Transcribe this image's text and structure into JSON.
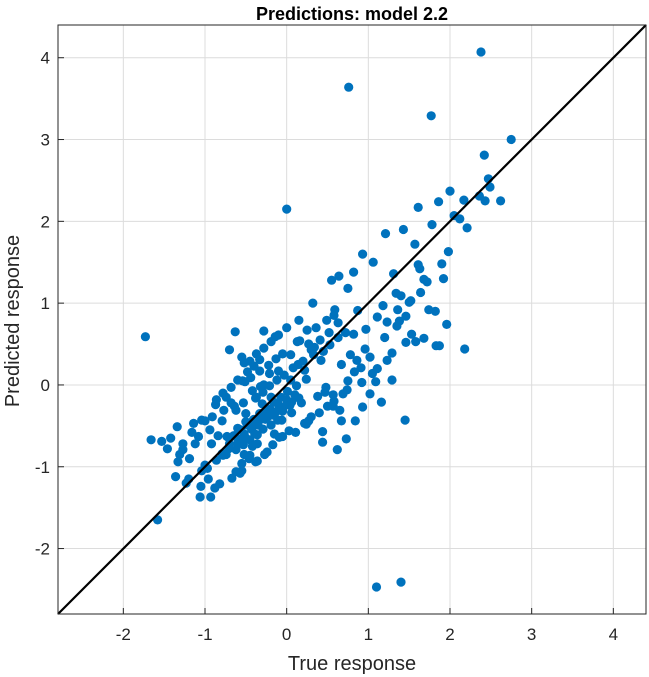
{
  "chart_data": {
    "type": "scatter",
    "title": "Predictions: model 2.2",
    "xlabel": "True response",
    "ylabel": "Predicted response",
    "xlim": [
      -2.8,
      4.4
    ],
    "ylim": [
      -2.8,
      4.4
    ],
    "xticks": [
      -2,
      -1,
      0,
      1,
      2,
      3,
      4
    ],
    "yticks": [
      -2,
      -1,
      0,
      1,
      2,
      3,
      4
    ],
    "xtick_labels": [
      "-2",
      "-1",
      "0",
      "1",
      "2",
      "3",
      "4"
    ],
    "ytick_labels": [
      "-2",
      "-1",
      "0",
      "1",
      "2",
      "3",
      "4"
    ],
    "grid": true,
    "reference_line": {
      "from": [
        -2.8,
        -2.8
      ],
      "to": [
        4.4,
        4.4
      ],
      "color": "#000000"
    },
    "point_color": "#0072bd",
    "series": [
      {
        "x": [
          2.38,
          0.76,
          1.77,
          2.75,
          2.42,
          2.47,
          2.0,
          2.62,
          2.49,
          1.86,
          0.0,
          2.17,
          2.21,
          2.36,
          2.05,
          1.61,
          1.98,
          1.21,
          1.61,
          0.93,
          1.57,
          1.9,
          1.43,
          1.31,
          1.92,
          1.06,
          1.34,
          1.63,
          1.82,
          0.64,
          0.82,
          0.75,
          0.55,
          1.4,
          1.96,
          1.58,
          0.87,
          1.11,
          1.2,
          0.58,
          0.32,
          0.15,
          0.82,
          0.52,
          0.34,
          0.27,
          1.11,
          1.02,
          0.78,
          0.67,
          0.42,
          0.22,
          0.14,
          0.05,
          -0.1,
          -0.21,
          -0.32,
          -0.54,
          -0.52,
          -0.19,
          -0.3,
          -0.42,
          -0.5,
          -0.62,
          -0.68,
          -0.79,
          -0.94,
          -1.0,
          -1.08,
          -1.16,
          -1.27,
          -1.34,
          -1.42,
          -1.53,
          -1.66,
          -1.73,
          -1.31,
          -1.19,
          -0.97,
          -0.84,
          -0.78,
          -0.62,
          -0.55,
          -0.45,
          -0.36,
          -0.27,
          -0.15,
          -0.06,
          0.06,
          0.18,
          0.27,
          0.38,
          0.47,
          0.57,
          0.65,
          0.74,
          0.84,
          0.93,
          1.02,
          1.09,
          1.16,
          1.23,
          1.29,
          1.35,
          1.46,
          1.53,
          1.68,
          1.74,
          1.83,
          -1.36,
          -1.23,
          -1.05,
          -0.96,
          -0.82,
          -0.67,
          -0.55,
          -0.46,
          -0.36,
          -0.24,
          -0.17,
          -0.09,
          0.03,
          0.11,
          0.22,
          0.3,
          0.4,
          0.5,
          0.58,
          0.69,
          0.75,
          0.83,
          0.91,
          -1.14,
          -1.04,
          -0.91,
          -0.77,
          -0.64,
          -0.53,
          -0.38,
          -0.29,
          -0.21,
          -0.12,
          -0.03,
          0.08,
          0.2,
          0.33,
          0.45,
          0.53,
          0.63,
          0.72,
          -0.86,
          -0.78,
          -0.68,
          -0.51,
          -0.44,
          -0.33,
          -0.22,
          -0.13,
          -0.05,
          0.13,
          0.25,
          0.36,
          0.49,
          0.59,
          -0.92,
          -0.73,
          -0.59,
          -0.48,
          -0.41,
          -0.33,
          -0.25,
          -0.16,
          -0.07,
          0.01,
          0.12,
          0.24,
          -0.55,
          -0.45,
          -0.37,
          -0.28,
          -0.19,
          -0.1,
          0.0,
          -0.6,
          -0.48,
          -0.4,
          -0.33,
          1.45,
          1.4,
          1.1,
          1.5,
          1.78,
          1.23,
          2.12,
          2.43,
          1.68,
          1.46,
          1.87,
          2.18,
          0.97,
          0.63,
          0.62,
          0.44,
          -0.88,
          -1.04,
          -1.2,
          -1.06,
          -0.93,
          -0.57,
          -0.38,
          -0.78,
          -0.24,
          -0.05,
          0.24,
          0.48,
          0.44,
          0.67,
          0.73,
          0.57,
          0.92,
          1.05,
          1.29,
          1.36,
          1.52,
          1.64,
          1.72,
          1.38,
          1.18,
          0.96,
          0.86,
          0.41,
          0.3,
          0.16,
          0.05,
          -0.14,
          -0.28,
          -0.63,
          -0.7,
          -0.74,
          -0.87,
          -1.12,
          -1.27,
          -1.33,
          -1.46,
          -1.58,
          -0.5,
          -0.4,
          -0.31,
          -0.2,
          -0.1,
          0.0,
          0.1,
          -0.65,
          -0.56,
          -0.44,
          -0.34,
          -0.23,
          -0.13,
          -0.04,
          0.06,
          0.15,
          -0.7,
          -0.6,
          -0.52,
          -0.43,
          -0.35,
          -0.26,
          -0.16,
          -0.05,
          0.04,
          -0.79,
          -0.71,
          -0.6,
          -0.5,
          -0.39,
          -0.29,
          -0.19,
          -0.11,
          -1.0,
          -0.86,
          -0.74,
          -0.62,
          -0.53,
          -0.45,
          -0.36,
          -0.42,
          -0.52,
          -0.6,
          -0.37,
          -0.28
        ],
        "y": [
          4.07,
          3.64,
          3.29,
          3.0,
          2.81,
          2.52,
          2.37,
          2.25,
          2.42,
          2.24,
          2.15,
          2.26,
          1.92,
          2.31,
          2.07,
          2.17,
          1.63,
          1.85,
          1.47,
          1.6,
          1.72,
          1.48,
          1.9,
          1.36,
          1.3,
          1.5,
          1.12,
          1.42,
          0.9,
          1.33,
          1.38,
          1.18,
          1.28,
          1.09,
          0.74,
          0.53,
          0.91,
          0.83,
          0.58,
          0.85,
          1.0,
          0.79,
          0.62,
          0.64,
          0.46,
          0.5,
          0.2,
          0.34,
          0.37,
          0.25,
          0.3,
          0.18,
          0.25,
          0.06,
          0.17,
          0.14,
          -0.02,
          0.05,
          0.27,
          -0.15,
          -0.23,
          -0.07,
          -0.35,
          -0.31,
          -0.22,
          -0.44,
          -0.55,
          -0.44,
          -0.63,
          -0.58,
          -0.72,
          -0.51,
          -0.65,
          -0.69,
          -0.67,
          0.59,
          -0.85,
          -0.9,
          -1.02,
          -0.62,
          -0.86,
          -1.06,
          -0.96,
          -0.86,
          -0.72,
          -0.85,
          -0.6,
          -0.43,
          -0.34,
          -0.22,
          -0.44,
          -0.14,
          -0.09,
          -0.26,
          -0.31,
          -0.06,
          -0.44,
          -0.27,
          -0.11,
          0.04,
          -0.21,
          0.3,
          0.06,
          0.72,
          0.84,
          0.62,
          0.57,
          0.92,
          0.48,
          -1.12,
          -1.2,
          -1.24,
          -1.15,
          -1.21,
          -1.14,
          -1.05,
          -0.9,
          -0.93,
          -0.82,
          -0.73,
          -0.64,
          -0.56,
          -0.58,
          -0.47,
          -0.39,
          -0.34,
          -0.26,
          -0.2,
          -0.11,
          0.05,
          0.16,
          0.21,
          -0.47,
          -0.43,
          -0.39,
          -0.31,
          -0.26,
          -0.22,
          -0.16,
          -0.09,
          -0.01,
          0.06,
          0.12,
          0.21,
          0.29,
          0.37,
          0.41,
          0.49,
          0.58,
          0.64,
          -0.18,
          -0.1,
          -0.03,
          0.04,
          0.09,
          0.17,
          0.24,
          0.32,
          0.38,
          0.53,
          0.67,
          0.7,
          0.79,
          0.92,
          -0.72,
          -0.63,
          -0.55,
          -0.49,
          -0.43,
          -0.35,
          -0.28,
          -0.21,
          -0.15,
          -0.08,
          -0.01,
          0.07,
          0.34,
          0.29,
          0.38,
          0.45,
          0.53,
          0.61,
          0.7,
          0.06,
          0.16,
          0.23,
          0.31,
          -0.43,
          -2.41,
          -2.47,
          1.01,
          1.96,
          0.77,
          2.03,
          2.25,
          1.29,
          0.52,
          0.48,
          0.44,
          0.68,
          0.76,
          -0.79,
          -0.7,
          -1.26,
          -1.05,
          -1.15,
          -1.37,
          -1.37,
          -1.08,
          -0.94,
          -0.84,
          -0.34,
          -0.63,
          -0.48,
          -0.03,
          -0.57,
          -0.44,
          -0.66,
          -0.12,
          0.03,
          0.14,
          0.39,
          0.92,
          1.03,
          1.13,
          1.26,
          0.78,
          0.97,
          0.44,
          0.3,
          0.55,
          0.43,
          0.54,
          0.37,
          0.59,
          0.66,
          0.65,
          0.43,
          -0.15,
          -0.24,
          -0.72,
          -0.79,
          -0.94,
          -0.78,
          -1.65,
          -0.45,
          -0.42,
          -0.35,
          -0.3,
          -0.24,
          -0.18,
          -0.12,
          -0.62,
          -0.55,
          -0.5,
          -0.44,
          -0.39,
          -0.33,
          -0.27,
          -0.21,
          -0.16,
          -0.72,
          -0.66,
          -0.6,
          -0.54,
          -0.49,
          -0.42,
          -0.37,
          -0.32,
          -0.25,
          -0.84,
          -0.78,
          -0.72,
          -0.65,
          -0.6,
          -0.54,
          -0.49,
          -0.43,
          -0.98,
          -0.92,
          -0.85,
          -0.79,
          -0.73,
          -0.67,
          -0.61,
          -0.75,
          -0.85,
          -0.53,
          -0.15,
          0.0
        ]
      }
    ]
  }
}
